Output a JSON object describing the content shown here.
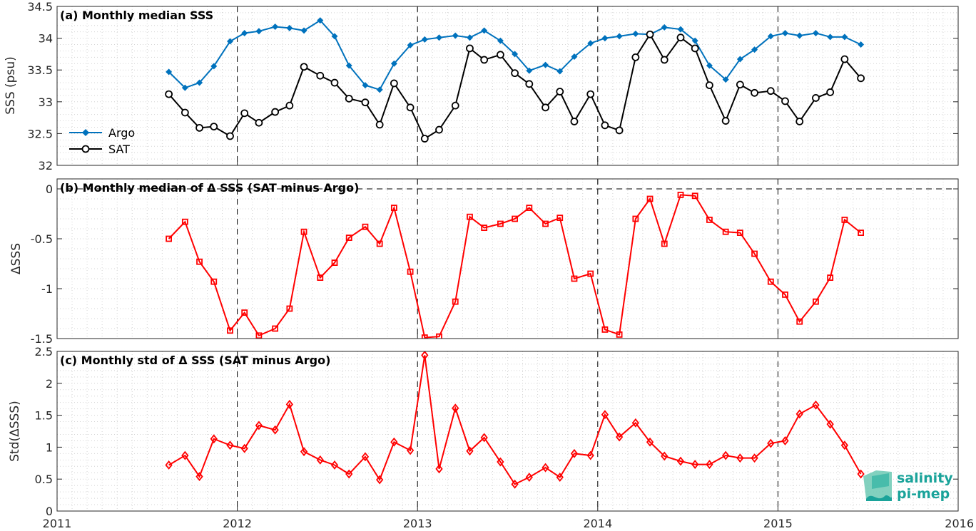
{
  "chart_data": [
    {
      "type": "line",
      "title": "(a) Monthly median SSS",
      "ylabel": "SSS (psu)",
      "xlim": [
        2011,
        2016
      ],
      "ylim": [
        32,
        34.5
      ],
      "yticks": [
        "32",
        "32.5",
        "33",
        "33.5",
        "34",
        "34.5"
      ],
      "xticks": [
        "2011",
        "2012",
        "2013",
        "2014",
        "2015",
        "2016"
      ],
      "grid": "minor dotted",
      "legend_position": "left",
      "x": [
        2011.62,
        2011.71,
        2011.79,
        2011.87,
        2011.96,
        2012.04,
        2012.12,
        2012.21,
        2012.29,
        2012.37,
        2012.46,
        2012.54,
        2012.62,
        2012.71,
        2012.79,
        2012.87,
        2012.96,
        2013.04,
        2013.12,
        2013.21,
        2013.29,
        2013.37,
        2013.46,
        2013.54,
        2013.62,
        2013.71,
        2013.79,
        2013.87,
        2013.96,
        2014.04,
        2014.12,
        2014.21,
        2014.29,
        2014.37,
        2014.46,
        2014.54,
        2014.62,
        2014.71,
        2014.79,
        2014.87,
        2014.96,
        2015.04,
        2015.12,
        2015.21,
        2015.29,
        2015.37,
        2015.46
      ],
      "series": [
        {
          "name": "Argo",
          "color": "#0072bd",
          "marker": "diamond",
          "values": [
            33.47,
            33.22,
            33.3,
            33.56,
            33.95,
            34.08,
            34.11,
            34.18,
            34.16,
            34.12,
            34.28,
            34.03,
            33.57,
            33.26,
            33.19,
            33.6,
            33.89,
            33.98,
            34.01,
            34.04,
            34.01,
            34.12,
            33.96,
            33.75,
            33.49,
            33.58,
            33.48,
            33.71,
            33.92,
            34.0,
            34.03,
            34.07,
            34.06,
            34.17,
            34.14,
            33.96,
            33.57,
            33.35,
            33.67,
            33.82,
            34.03,
            34.08,
            34.04,
            34.08,
            34.02,
            34.02,
            33.9
          ]
        },
        {
          "name": "SAT",
          "color": "#000000",
          "marker": "circle",
          "values": [
            33.12,
            32.83,
            32.59,
            32.61,
            32.46,
            32.82,
            32.67,
            32.84,
            32.94,
            33.55,
            33.41,
            33.3,
            33.05,
            32.99,
            32.64,
            33.29,
            32.91,
            32.42,
            32.56,
            32.94,
            33.84,
            33.66,
            33.74,
            33.45,
            33.28,
            32.91,
            33.16,
            32.69,
            33.12,
            32.63,
            32.55,
            33.7,
            34.06,
            33.66,
            34.01,
            33.84,
            33.26,
            32.7,
            33.27,
            33.14,
            33.17,
            33.01,
            32.69,
            33.06,
            33.15,
            33.67,
            33.37
          ]
        }
      ]
    },
    {
      "type": "line",
      "title": "(b) Monthly median of Δ SSS (SAT minus Argo)",
      "ylabel": "ΔSSS",
      "xlim": [
        2011,
        2016
      ],
      "ylim": [
        -1.5,
        0.1
      ],
      "yticks": [
        "-1.5",
        "-1",
        "-0.5",
        "0"
      ],
      "xticks": [
        "2011",
        "2012",
        "2013",
        "2014",
        "2015",
        "2016"
      ],
      "zero_line": "dashed",
      "x": [
        2011.62,
        2011.71,
        2011.79,
        2011.87,
        2011.96,
        2012.04,
        2012.12,
        2012.21,
        2012.29,
        2012.37,
        2012.46,
        2012.54,
        2012.62,
        2012.71,
        2012.79,
        2012.87,
        2012.96,
        2013.04,
        2013.12,
        2013.21,
        2013.29,
        2013.37,
        2013.46,
        2013.54,
        2013.62,
        2013.71,
        2013.79,
        2013.87,
        2013.96,
        2014.04,
        2014.12,
        2014.21,
        2014.29,
        2014.37,
        2014.46,
        2014.54,
        2014.62,
        2014.71,
        2014.79,
        2014.87,
        2014.96,
        2015.04,
        2015.12,
        2015.21,
        2015.29,
        2015.37,
        2015.46
      ],
      "series": [
        {
          "color": "#ff0000",
          "marker": "square",
          "values": [
            -0.5,
            -0.33,
            -0.73,
            -0.93,
            -1.42,
            -1.24,
            -1.47,
            -1.4,
            -1.2,
            -0.43,
            -0.89,
            -0.74,
            -0.49,
            -0.38,
            -0.55,
            -0.19,
            -0.83,
            -1.49,
            -1.48,
            -1.13,
            -0.28,
            -0.39,
            -0.35,
            -0.3,
            -0.19,
            -0.35,
            -0.29,
            -0.9,
            -0.85,
            -1.41,
            -1.46,
            -0.3,
            -0.1,
            -0.55,
            -0.06,
            -0.07,
            -0.31,
            -0.43,
            -0.44,
            -0.65,
            -0.93,
            -1.06,
            -1.33,
            -1.13,
            -0.89,
            -0.31,
            -0.44
          ]
        }
      ]
    },
    {
      "type": "line",
      "title": "(c) Monthly std of Δ SSS (SAT minus Argo)",
      "ylabel": "Std(ΔSSS)",
      "xlim": [
        2011,
        2016
      ],
      "ylim": [
        0,
        2.5
      ],
      "yticks": [
        "0",
        "0.5",
        "1",
        "1.5",
        "2",
        "2.5"
      ],
      "xticks": [
        "2011",
        "2012",
        "2013",
        "2014",
        "2015",
        "2016"
      ],
      "x": [
        2011.62,
        2011.71,
        2011.79,
        2011.87,
        2011.96,
        2012.04,
        2012.12,
        2012.21,
        2012.29,
        2012.37,
        2012.46,
        2012.54,
        2012.62,
        2012.71,
        2012.79,
        2012.87,
        2012.96,
        2013.04,
        2013.12,
        2013.21,
        2013.29,
        2013.37,
        2013.46,
        2013.54,
        2013.62,
        2013.71,
        2013.79,
        2013.87,
        2013.96,
        2014.04,
        2014.12,
        2014.21,
        2014.29,
        2014.37,
        2014.46,
        2014.54,
        2014.62,
        2014.71,
        2014.79,
        2014.87,
        2014.96,
        2015.04,
        2015.12,
        2015.21,
        2015.29,
        2015.37,
        2015.46
      ],
      "series": [
        {
          "color": "#ff0000",
          "marker": "diamond",
          "values": [
            0.72,
            0.87,
            0.54,
            1.13,
            1.03,
            0.98,
            1.34,
            1.27,
            1.67,
            0.93,
            0.8,
            0.72,
            0.58,
            0.85,
            0.49,
            1.08,
            0.95,
            2.44,
            0.66,
            1.61,
            0.94,
            1.15,
            0.77,
            0.42,
            0.53,
            0.68,
            0.53,
            0.9,
            0.87,
            1.51,
            1.16,
            1.38,
            1.08,
            0.86,
            0.78,
            0.73,
            0.73,
            0.87,
            0.83,
            0.83,
            1.06,
            1.1,
            1.52,
            1.66,
            1.36,
            1.03,
            0.58
          ]
        }
      ]
    }
  ],
  "logo": {
    "line1": "salinity",
    "line2": "pi-mep"
  }
}
